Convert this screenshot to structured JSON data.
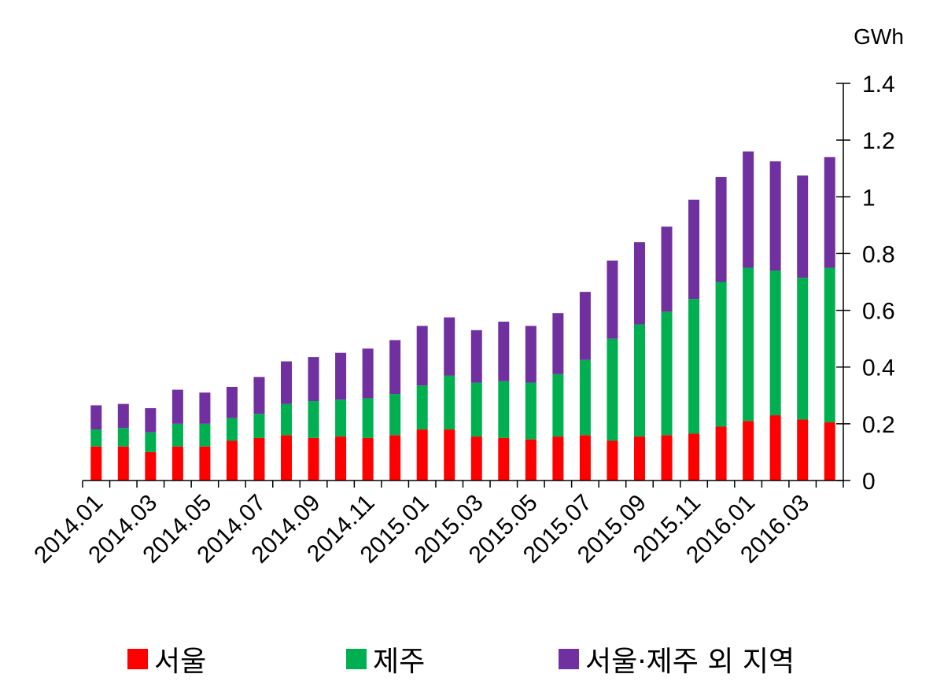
{
  "chart_data": {
    "type": "bar",
    "stacked": true,
    "unit": "GWh",
    "ylim": [
      0,
      1.4
    ],
    "yticks": [
      "0",
      "0.2",
      "0.4",
      "0.6",
      "0.8",
      "1",
      "1.2",
      "1.4"
    ],
    "categories": [
      "2014.01",
      "2014.02",
      "2014.03",
      "2014.04",
      "2014.05",
      "2014.06",
      "2014.07",
      "2014.08",
      "2014.09",
      "2014.10",
      "2014.11",
      "2014.12",
      "2015.01",
      "2015.02",
      "2015.03",
      "2015.04",
      "2015.05",
      "2015.06",
      "2015.07",
      "2015.08",
      "2015.09",
      "2015.10",
      "2015.11",
      "2015.12",
      "2016.01",
      "2016.02",
      "2016.03",
      "2016.04"
    ],
    "xtick_labels": [
      "2014.01",
      "2014.03",
      "2014.05",
      "2014.07",
      "2014.09",
      "2014.11",
      "2015.01",
      "2015.03",
      "2015.05",
      "2015.07",
      "2015.09",
      "2015.11",
      "2016.01",
      "2016.03"
    ],
    "series": [
      {
        "name": "서울",
        "color": "#ff0000",
        "values": [
          0.12,
          0.12,
          0.1,
          0.12,
          0.12,
          0.14,
          0.15,
          0.16,
          0.15,
          0.155,
          0.15,
          0.16,
          0.18,
          0.18,
          0.155,
          0.15,
          0.145,
          0.155,
          0.16,
          0.14,
          0.155,
          0.16,
          0.165,
          0.19,
          0.21,
          0.23,
          0.215,
          0.205
        ]
      },
      {
        "name": "제주",
        "color": "#00b050",
        "values": [
          0.06,
          0.065,
          0.07,
          0.08,
          0.08,
          0.08,
          0.085,
          0.11,
          0.13,
          0.13,
          0.14,
          0.145,
          0.155,
          0.19,
          0.19,
          0.2,
          0.2,
          0.22,
          0.265,
          0.36,
          0.395,
          0.435,
          0.475,
          0.51,
          0.54,
          0.51,
          0.5,
          0.545
        ]
      },
      {
        "name": "서울·제주 외 지역",
        "color": "#7030a0",
        "values": [
          0.085,
          0.085,
          0.085,
          0.12,
          0.11,
          0.11,
          0.13,
          0.15,
          0.155,
          0.165,
          0.175,
          0.19,
          0.21,
          0.205,
          0.185,
          0.21,
          0.2,
          0.215,
          0.24,
          0.275,
          0.29,
          0.3,
          0.35,
          0.37,
          0.41,
          0.385,
          0.36,
          0.39
        ]
      }
    ]
  }
}
